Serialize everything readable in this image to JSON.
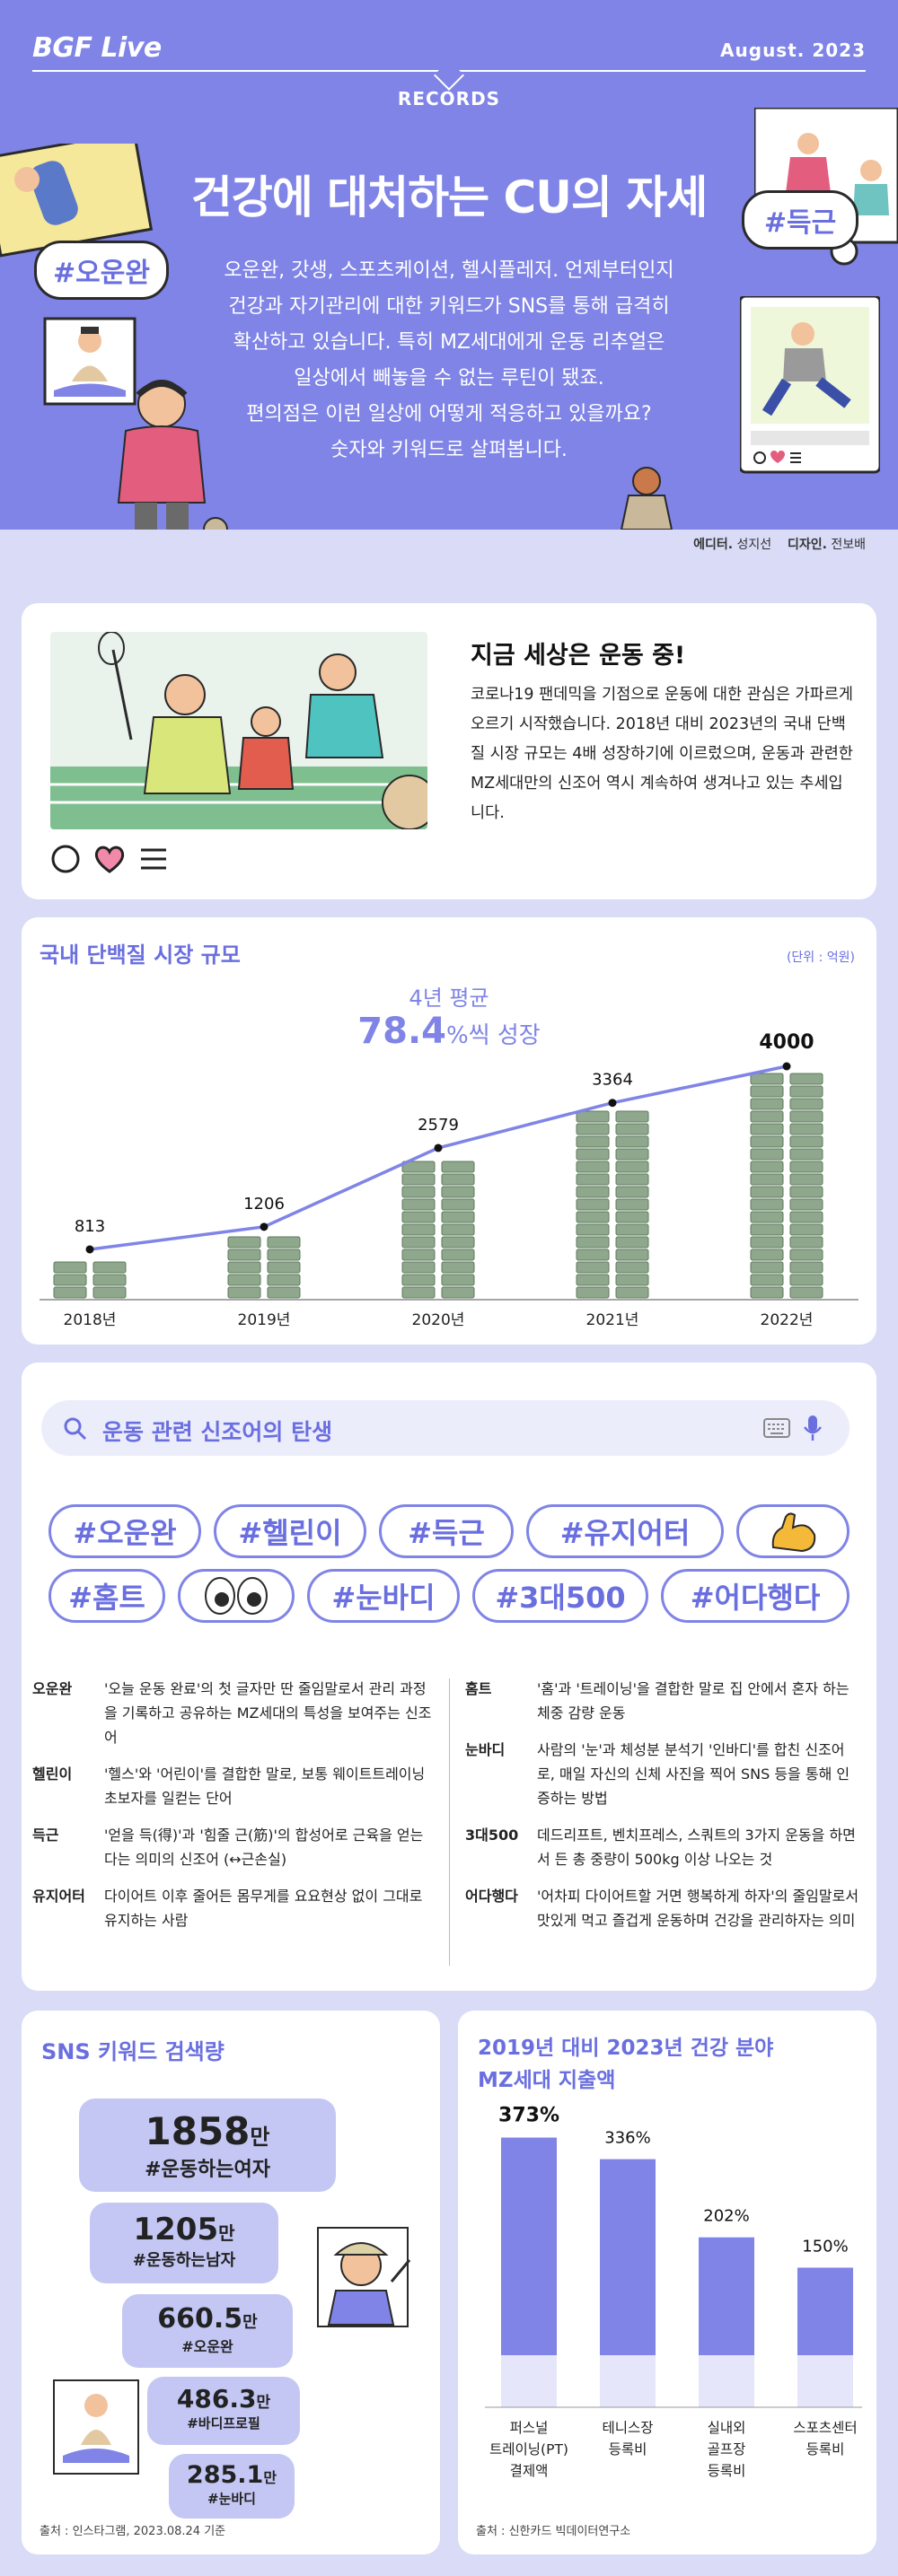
{
  "header": {
    "logo": "BGF Live",
    "date": "August.  2023",
    "section": "RECORDS",
    "title": "건강에 대처하는 CU의 자세",
    "intro_lines": [
      "오운완, 갓생, 스포츠케이션, 헬시플레저. 언제부터인지",
      "건강과 자기관리에 대한 키워드가 SNS를 통해 급격히",
      "확산하고 있습니다. 특히 MZ세대에게 운동 리추얼은",
      "일상에서 빼놓을 수 없는 루틴이 됐죠.",
      "편의점은 이런 일상에 어떻게 적응하고 있을까요?",
      "숫자와 키워드로 살펴봅니다."
    ],
    "bubble_left": "#오운완",
    "bubble_right": "#득근",
    "credit_editor_label": "에디터.",
    "credit_editor": "성지선",
    "credit_design_label": "디자인.",
    "credit_design": "전보배"
  },
  "section1": {
    "title": "지금 세상은 운동 중!",
    "text": "코로나19 팬데믹을 기점으로 운동에 대한 관심은 가파르게 오르기 시작했습니다. 2018년 대비 2023년의 국내 단백질 시장 규모는 4배 성장하기에 이르렀으며, 운동과 관련한 MZ세대만의 신조어 역시 계속하여 생겨나고 있는 추세입니다.",
    "icons": [
      "circle-icon",
      "heart-icon",
      "menu-icon"
    ]
  },
  "section2": {
    "title": "국내 단백질 시장 규모",
    "unit": "(단위 : 억원)",
    "avg_label": "4년 평균",
    "growth_value": "78.4",
    "growth_suffix": "%씩 성장"
  },
  "chart_data": {
    "type": "line",
    "title": "국내 단백질 시장 규모",
    "ylabel": "(단위 : 억원)",
    "categories": [
      "2018년",
      "2019년",
      "2020년",
      "2021년",
      "2022년"
    ],
    "values": [
      813,
      1206,
      2579,
      3364,
      4000
    ],
    "value_labels": [
      "813",
      "1206",
      "2579",
      "3364",
      "4000"
    ],
    "ylim": [
      0,
      4000
    ],
    "colors": {
      "line": "#7f84e6",
      "money": "#8fa88d",
      "money_dark": "#5d7a5c"
    }
  },
  "section3": {
    "search": "운동 관련 신조어의 탄생",
    "tags_row1": [
      "#오운완",
      "#헬린이",
      "#득근",
      "#유지어터"
    ],
    "tags_row2": [
      "#홈트",
      "#눈바디",
      "#3대500",
      "#어다행다"
    ],
    "defs_left": [
      {
        "term": "오운완",
        "desc": "'오늘 운동 완료'의 첫 글자만 딴 줄임말로서 관리 과정을 기록하고 공유하는 MZ세대의 특성을 보여주는 신조어"
      },
      {
        "term": "헬린이",
        "desc": "'헬스'와 '어린이'를 결합한 말로, 보통 웨이트트레이닝 초보자를 일컫는 단어"
      },
      {
        "term": "득근",
        "desc": "'얻을 득(得)'과 '힘줄 근(筋)'의 합성어로 근육을 얻는다는 의미의 신조어 (↔근손실)"
      },
      {
        "term": "유지어터",
        "desc": "다이어트 이후 줄어든 몸무게를 요요현상 없이 그대로 유지하는 사람"
      }
    ],
    "defs_right": [
      {
        "term": "홈트",
        "desc": "'홈'과 '트레이닝'을 결합한 말로 집 안에서 혼자 하는 체중 감량 운동"
      },
      {
        "term": "눈바디",
        "desc": "사람의 '눈'과 체성분 분석기 '인바디'를 합친 신조어로, 매일 자신의 신체 사진을 찍어 SNS 등을 통해 인증하는 방법"
      },
      {
        "term": "3대500",
        "desc": "데드리프트, 벤치프레스, 스쿼트의 3가지 운동을 하면서 든 총 중량이 500kg 이상 나오는 것"
      },
      {
        "term": "어다행다",
        "desc": "'어차피 다이어트할 거면 행복하게 하자'의 줄임말로서 맛있게 먹고 즐겁게 운동하며 건강을 관리하자는 의미"
      }
    ]
  },
  "section4": {
    "title": "SNS 키워드 검색량",
    "items": [
      {
        "value": "1858",
        "unit": "만",
        "label": "#운동하는여자"
      },
      {
        "value": "1205",
        "unit": "만",
        "label": "#운동하는남자"
      },
      {
        "value": "660.5",
        "unit": "만",
        "label": "#오운완"
      },
      {
        "value": "486.3",
        "unit": "만",
        "label": "#바디프로필"
      },
      {
        "value": "285.1",
        "unit": "만",
        "label": "#눈바디"
      }
    ],
    "source": "출처 : 인스타그램, 2023.08.24 기준"
  },
  "section5": {
    "title_line1": "2019년 대비 2023년 건강 분야",
    "title_line2": "MZ세대 지출액",
    "bars": [
      {
        "value": 373,
        "label": "373%",
        "name_lines": [
          "퍼스널",
          "트레이닝(PT)",
          "결제액"
        ]
      },
      {
        "value": 336,
        "label": "336%",
        "name_lines": [
          "테니스장",
          "등록비"
        ]
      },
      {
        "value": 202,
        "label": "202%",
        "name_lines": [
          "실내외",
          "골프장",
          "등록비"
        ]
      },
      {
        "value": 150,
        "label": "150%",
        "name_lines": [
          "스포츠센터",
          "등록비"
        ]
      }
    ],
    "source": "출처 : 신한카드 빅데이터연구소"
  }
}
